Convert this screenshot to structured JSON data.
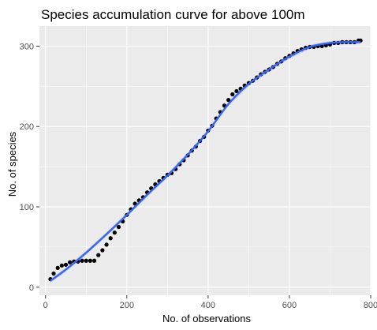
{
  "chart_data": {
    "type": "scatter",
    "title": "Species accumulation curve for above 100m",
    "xlabel": "No. of observations",
    "ylabel": "No. of species",
    "xlim": [
      -15,
      800
    ],
    "ylim": [
      -10,
      325
    ],
    "x_ticks": [
      0,
      200,
      400,
      600,
      800
    ],
    "y_ticks": [
      0,
      100,
      200,
      300
    ],
    "grid": true,
    "panel_background": "#ebebeb",
    "grid_color": "#ffffff",
    "point_color": "#000000",
    "fit_color": "#3366ff",
    "fit_band_color": "#bdbdbd",
    "points": [
      [
        12,
        10
      ],
      [
        20,
        17
      ],
      [
        30,
        24
      ],
      [
        40,
        27
      ],
      [
        50,
        28
      ],
      [
        60,
        31
      ],
      [
        70,
        32
      ],
      [
        80,
        32
      ],
      [
        90,
        33
      ],
      [
        100,
        33
      ],
      [
        110,
        33
      ],
      [
        120,
        33
      ],
      [
        130,
        40
      ],
      [
        140,
        46
      ],
      [
        150,
        53
      ],
      [
        160,
        61
      ],
      [
        170,
        68
      ],
      [
        180,
        75
      ],
      [
        190,
        82
      ],
      [
        200,
        90
      ],
      [
        210,
        97
      ],
      [
        220,
        104
      ],
      [
        230,
        108
      ],
      [
        240,
        112
      ],
      [
        250,
        118
      ],
      [
        260,
        123
      ],
      [
        270,
        128
      ],
      [
        280,
        132
      ],
      [
        290,
        136
      ],
      [
        300,
        140
      ],
      [
        310,
        142
      ],
      [
        320,
        147
      ],
      [
        330,
        153
      ],
      [
        340,
        158
      ],
      [
        350,
        164
      ],
      [
        360,
        170
      ],
      [
        370,
        175
      ],
      [
        380,
        182
      ],
      [
        390,
        187
      ],
      [
        400,
        195
      ],
      [
        410,
        201
      ],
      [
        420,
        210
      ],
      [
        430,
        218
      ],
      [
        440,
        226
      ],
      [
        450,
        233
      ],
      [
        460,
        240
      ],
      [
        470,
        244
      ],
      [
        480,
        247
      ],
      [
        490,
        251
      ],
      [
        500,
        254
      ],
      [
        510,
        257
      ],
      [
        520,
        261
      ],
      [
        530,
        265
      ],
      [
        540,
        268
      ],
      [
        550,
        271
      ],
      [
        560,
        274
      ],
      [
        570,
        278
      ],
      [
        580,
        281
      ],
      [
        590,
        285
      ],
      [
        600,
        288
      ],
      [
        610,
        291
      ],
      [
        620,
        294
      ],
      [
        630,
        296
      ],
      [
        640,
        298
      ],
      [
        650,
        299
      ],
      [
        660,
        299
      ],
      [
        670,
        300
      ],
      [
        680,
        300
      ],
      [
        690,
        301
      ],
      [
        700,
        302
      ],
      [
        710,
        304
      ],
      [
        720,
        304
      ],
      [
        730,
        305
      ],
      [
        740,
        305
      ],
      [
        750,
        305
      ],
      [
        760,
        305
      ],
      [
        770,
        307
      ],
      [
        775,
        307
      ]
    ],
    "fit_line": [
      [
        12,
        8
      ],
      [
        50,
        22
      ],
      [
        100,
        43
      ],
      [
        150,
        66
      ],
      [
        200,
        90
      ],
      [
        250,
        115
      ],
      [
        300,
        139
      ],
      [
        350,
        165
      ],
      [
        400,
        194
      ],
      [
        450,
        228
      ],
      [
        500,
        253
      ],
      [
        550,
        271
      ],
      [
        600,
        287
      ],
      [
        650,
        299
      ],
      [
        700,
        304
      ],
      [
        740,
        305
      ],
      [
        775,
        305
      ]
    ]
  }
}
